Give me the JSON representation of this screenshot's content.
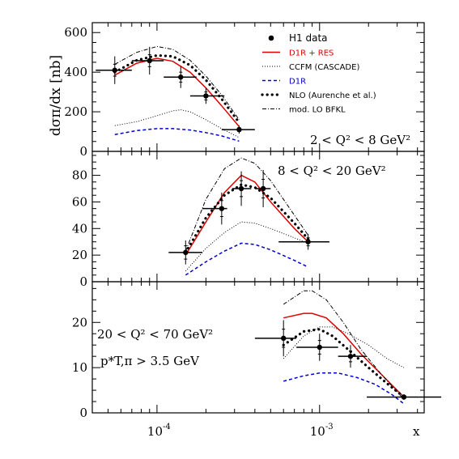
{
  "chart_data": [
    {
      "type": "line",
      "panel": "top",
      "xscale": "log",
      "xlim": [
        4e-05,
        0.0044
      ],
      "ylim": [
        0,
        650
      ],
      "yticks": [
        0,
        200,
        400,
        600
      ],
      "ylabel": "dσπ/dx [nb]",
      "annotation": "2 < Q² < 8 GeV²",
      "legend": [
        {
          "key": "h1",
          "label": "H1 data",
          "style": "marker",
          "color": "#000000"
        },
        {
          "key": "d1r_res",
          "label": "D1R + RES",
          "style": "solid",
          "color": "#e00000"
        },
        {
          "key": "ccfm",
          "label": "CCFM (CASCADE)",
          "style": "dotted-fine",
          "color": "#000000"
        },
        {
          "key": "d1r",
          "label": "D1R",
          "style": "dashed",
          "color": "#0000cc"
        },
        {
          "key": "nlo",
          "label": "NLO (Aurenche et al.)",
          "style": "dotted-bold",
          "color": "#000000"
        },
        {
          "key": "bfkl",
          "label": "mod. LO BFKL",
          "style": "dashdot",
          "color": "#000000"
        }
      ],
      "points": [
        {
          "x": 5.5e-05,
          "y": 410,
          "xlo": 4.2e-05,
          "xhi": 7e-05,
          "stat": 30,
          "tot": 70
        },
        {
          "x": 9e-05,
          "y": 458,
          "xlo": 7e-05,
          "xhi": 0.00011,
          "stat": 30,
          "tot": 70
        },
        {
          "x": 0.00014,
          "y": 375,
          "xlo": 0.00011,
          "xhi": 0.000175,
          "stat": 25,
          "tot": 55
        },
        {
          "x": 0.0002,
          "y": 280,
          "xlo": 0.00016,
          "xhi": 0.00026,
          "stat": 20,
          "tot": 40
        },
        {
          "x": 0.00032,
          "y": 110,
          "xlo": 0.00025,
          "xhi": 0.0004,
          "stat": 10,
          "tot": 20
        }
      ],
      "series": [
        {
          "key": "d1r_res",
          "x": [
            5.5e-05,
            7.5e-05,
            0.0001,
            0.000125,
            0.00016,
            0.0002,
            0.00025,
            0.00032
          ],
          "y": [
            385,
            445,
            470,
            455,
            400,
            320,
            230,
            125
          ]
        },
        {
          "key": "ccfm",
          "x": [
            5.5e-05,
            7.5e-05,
            0.0001,
            0.000125,
            0.00014,
            0.00016,
            0.0002,
            0.00025,
            0.00032
          ],
          "y": [
            130,
            150,
            180,
            205,
            210,
            200,
            160,
            115,
            70
          ]
        },
        {
          "key": "d1r",
          "x": [
            5.5e-05,
            7.5e-05,
            0.0001,
            0.000125,
            0.00016,
            0.0002,
            0.00025,
            0.00032
          ],
          "y": [
            85,
            105,
            115,
            115,
            108,
            95,
            78,
            52
          ]
        },
        {
          "key": "nlo",
          "x": [
            5.5e-05,
            7.5e-05,
            0.0001,
            0.000125,
            0.00016,
            0.0002,
            0.00025,
            0.00032
          ],
          "y": [
            400,
            460,
            485,
            480,
            435,
            360,
            265,
            145
          ]
        },
        {
          "key": "bfkl",
          "x": [
            5.5e-05,
            7.5e-05,
            0.0001,
            0.000125,
            0.00016,
            0.0002,
            0.00025,
            0.00032
          ],
          "y": [
            440,
            500,
            530,
            515,
            460,
            380,
            285,
            160
          ]
        }
      ]
    },
    {
      "type": "line",
      "panel": "middle",
      "xscale": "log",
      "xlim": [
        4e-05,
        0.0044
      ],
      "ylim": [
        0,
        98
      ],
      "yticks": [
        0,
        20,
        40,
        60,
        80
      ],
      "annotation": "8 < Q² < 20 GeV²",
      "points": [
        {
          "x": 0.00015,
          "y": 22,
          "xlo": 0.000118,
          "xhi": 0.00019,
          "stat": 5,
          "tot": 9
        },
        {
          "x": 0.00025,
          "y": 55,
          "xlo": 0.00019,
          "xhi": 0.00027,
          "stat": 6,
          "tot": 12
        },
        {
          "x": 0.00033,
          "y": 70,
          "xlo": 0.00029,
          "xhi": 0.00038,
          "stat": 6,
          "tot": 13
        },
        {
          "x": 0.00045,
          "y": 70,
          "xlo": 0.0004,
          "xhi": 0.0005,
          "stat": 7,
          "tot": 14
        },
        {
          "x": 0.00085,
          "y": 30,
          "xlo": 0.00056,
          "xhi": 0.00115,
          "stat": 3,
          "tot": 6
        }
      ],
      "series": [
        {
          "key": "d1r_res",
          "x": [
            0.00015,
            0.0002,
            0.00026,
            0.00033,
            0.0004,
            0.0005,
            0.0007,
            0.00085
          ],
          "y": [
            20,
            45,
            67,
            80,
            75,
            60,
            40,
            30
          ]
        },
        {
          "key": "ccfm",
          "x": [
            0.00015,
            0.0002,
            0.00026,
            0.00033,
            0.0004,
            0.0005,
            0.0007,
            0.00085
          ],
          "y": [
            8,
            25,
            37,
            45,
            44,
            40,
            33,
            29
          ]
        },
        {
          "key": "d1r",
          "x": [
            0.00015,
            0.0002,
            0.00026,
            0.00033,
            0.0004,
            0.0005,
            0.0007,
            0.00085
          ],
          "y": [
            5,
            15,
            23,
            29,
            28,
            24,
            16,
            11
          ]
        },
        {
          "key": "nlo",
          "x": [
            0.00015,
            0.0002,
            0.00026,
            0.00033,
            0.0004,
            0.0005,
            0.0007,
            0.00085
          ],
          "y": [
            22,
            48,
            65,
            73,
            71,
            63,
            44,
            32
          ]
        },
        {
          "key": "bfkl",
          "x": [
            0.00015,
            0.0002,
            0.00026,
            0.00033,
            0.0004,
            0.0005,
            0.0007,
            0.00085
          ],
          "y": [
            23,
            62,
            85,
            93,
            89,
            76,
            50,
            35
          ]
        }
      ]
    },
    {
      "type": "line",
      "panel": "bottom",
      "xscale": "log",
      "xlim": [
        4e-05,
        0.0044
      ],
      "ylim": [
        0,
        29
      ],
      "yticks": [
        0,
        10,
        20
      ],
      "xticks": [
        {
          "value": 0.0001,
          "base": "10",
          "exp": "-4"
        },
        {
          "value": 0.001,
          "base": "10",
          "exp": "-3"
        }
      ],
      "xlabel": "x",
      "annotation": "20 < Q² < 70 GeV²",
      "annotation2": "p*T,π > 3.5 GeV",
      "points": [
        {
          "x": 0.0006,
          "y": 16.5,
          "xlo": 0.0004,
          "xhi": 0.00072,
          "stat": 2.0,
          "tot": 4.0
        },
        {
          "x": 0.001,
          "y": 14.5,
          "xlo": 0.00072,
          "xhi": 0.0013,
          "stat": 1.5,
          "tot": 3.0
        },
        {
          "x": 0.00155,
          "y": 12.5,
          "xlo": 0.0013,
          "xhi": 0.00195,
          "stat": 1.2,
          "tot": 2.5
        },
        {
          "x": 0.0033,
          "y": 3.5,
          "xlo": 0.00195,
          "xhi": 0.0056,
          "stat": 0.3,
          "tot": 0.6
        }
      ],
      "series": [
        {
          "key": "d1r_res",
          "x": [
            0.0006,
            0.0008,
            0.0009,
            0.0011,
            0.0014,
            0.0018,
            0.0024,
            0.0033
          ],
          "y": [
            21,
            22,
            22,
            21,
            17.5,
            13,
            8.5,
            3.5
          ]
        },
        {
          "key": "ccfm",
          "x": [
            0.0006,
            0.0008,
            0.001,
            0.0012,
            0.0015,
            0.002,
            0.0026,
            0.0033
          ],
          "y": [
            12,
            17,
            19,
            19,
            17.5,
            15,
            12,
            10
          ]
        },
        {
          "key": "d1r",
          "x": [
            0.0006,
            0.0008,
            0.001,
            0.0013,
            0.0017,
            0.0022,
            0.0028,
            0.0033
          ],
          "y": [
            7,
            8.2,
            8.8,
            8.8,
            7.8,
            6.3,
            4,
            2
          ]
        },
        {
          "key": "nlo",
          "x": [
            0.0006,
            0.0008,
            0.001,
            0.0012,
            0.0015,
            0.002,
            0.0026,
            0.0033
          ],
          "y": [
            15,
            18,
            18.5,
            17,
            14,
            10,
            6.5,
            3.5
          ]
        },
        {
          "key": "bfkl",
          "x": [
            0.0006,
            0.0008,
            0.0009,
            0.0011,
            0.0014,
            0.0018,
            0.0024,
            0.0033
          ],
          "y": [
            24,
            27,
            27,
            25,
            20,
            14,
            8.5,
            3
          ]
        }
      ]
    }
  ]
}
